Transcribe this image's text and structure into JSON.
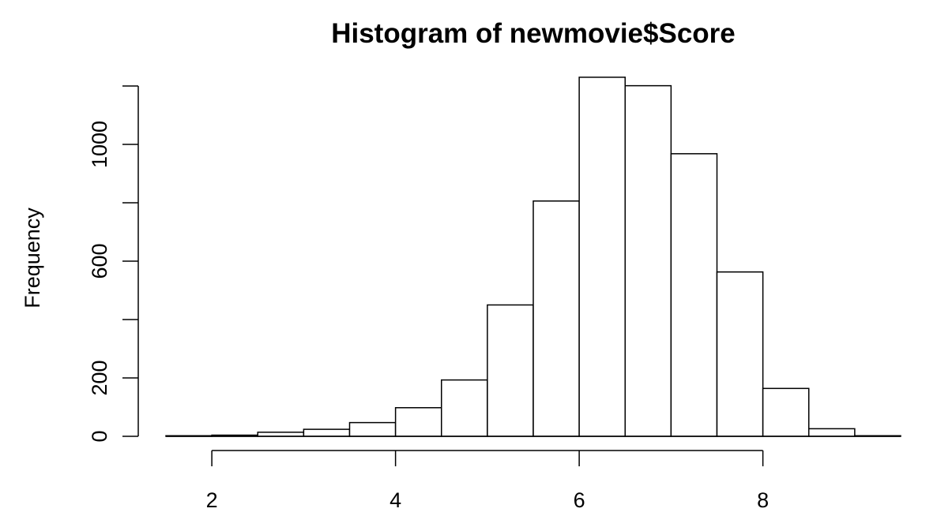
{
  "chart_data": {
    "type": "bar",
    "title": "Histogram of newmovie$Score",
    "xlabel": "",
    "ylabel": "Frequency",
    "bins": [
      {
        "start": 1.5,
        "end": 2.0,
        "count": 2
      },
      {
        "start": 2.0,
        "end": 2.5,
        "count": 4
      },
      {
        "start": 2.5,
        "end": 3.0,
        "count": 14
      },
      {
        "start": 3.0,
        "end": 3.5,
        "count": 24
      },
      {
        "start": 3.5,
        "end": 4.0,
        "count": 47
      },
      {
        "start": 4.0,
        "end": 4.5,
        "count": 98
      },
      {
        "start": 4.5,
        "end": 5.0,
        "count": 193
      },
      {
        "start": 5.0,
        "end": 5.5,
        "count": 450
      },
      {
        "start": 5.5,
        "end": 6.0,
        "count": 806
      },
      {
        "start": 6.0,
        "end": 6.5,
        "count": 1230
      },
      {
        "start": 6.5,
        "end": 7.0,
        "count": 1201
      },
      {
        "start": 7.0,
        "end": 7.5,
        "count": 968
      },
      {
        "start": 7.5,
        "end": 8.0,
        "count": 563
      },
      {
        "start": 8.0,
        "end": 8.5,
        "count": 164
      },
      {
        "start": 8.5,
        "end": 9.0,
        "count": 26
      },
      {
        "start": 9.0,
        "end": 9.5,
        "count": 2
      }
    ],
    "xlim": [
      1.5,
      9.5
    ],
    "ylim": [
      0,
      1200
    ],
    "x_ticks": [
      2,
      4,
      6,
      8
    ],
    "y_ticks": [
      0,
      200,
      600,
      1000
    ],
    "x_tick_labels": [
      "2",
      "4",
      "6",
      "8"
    ],
    "y_tick_labels": [
      "0",
      "200",
      "600",
      "1000"
    ],
    "grid": false,
    "legend": "none"
  }
}
